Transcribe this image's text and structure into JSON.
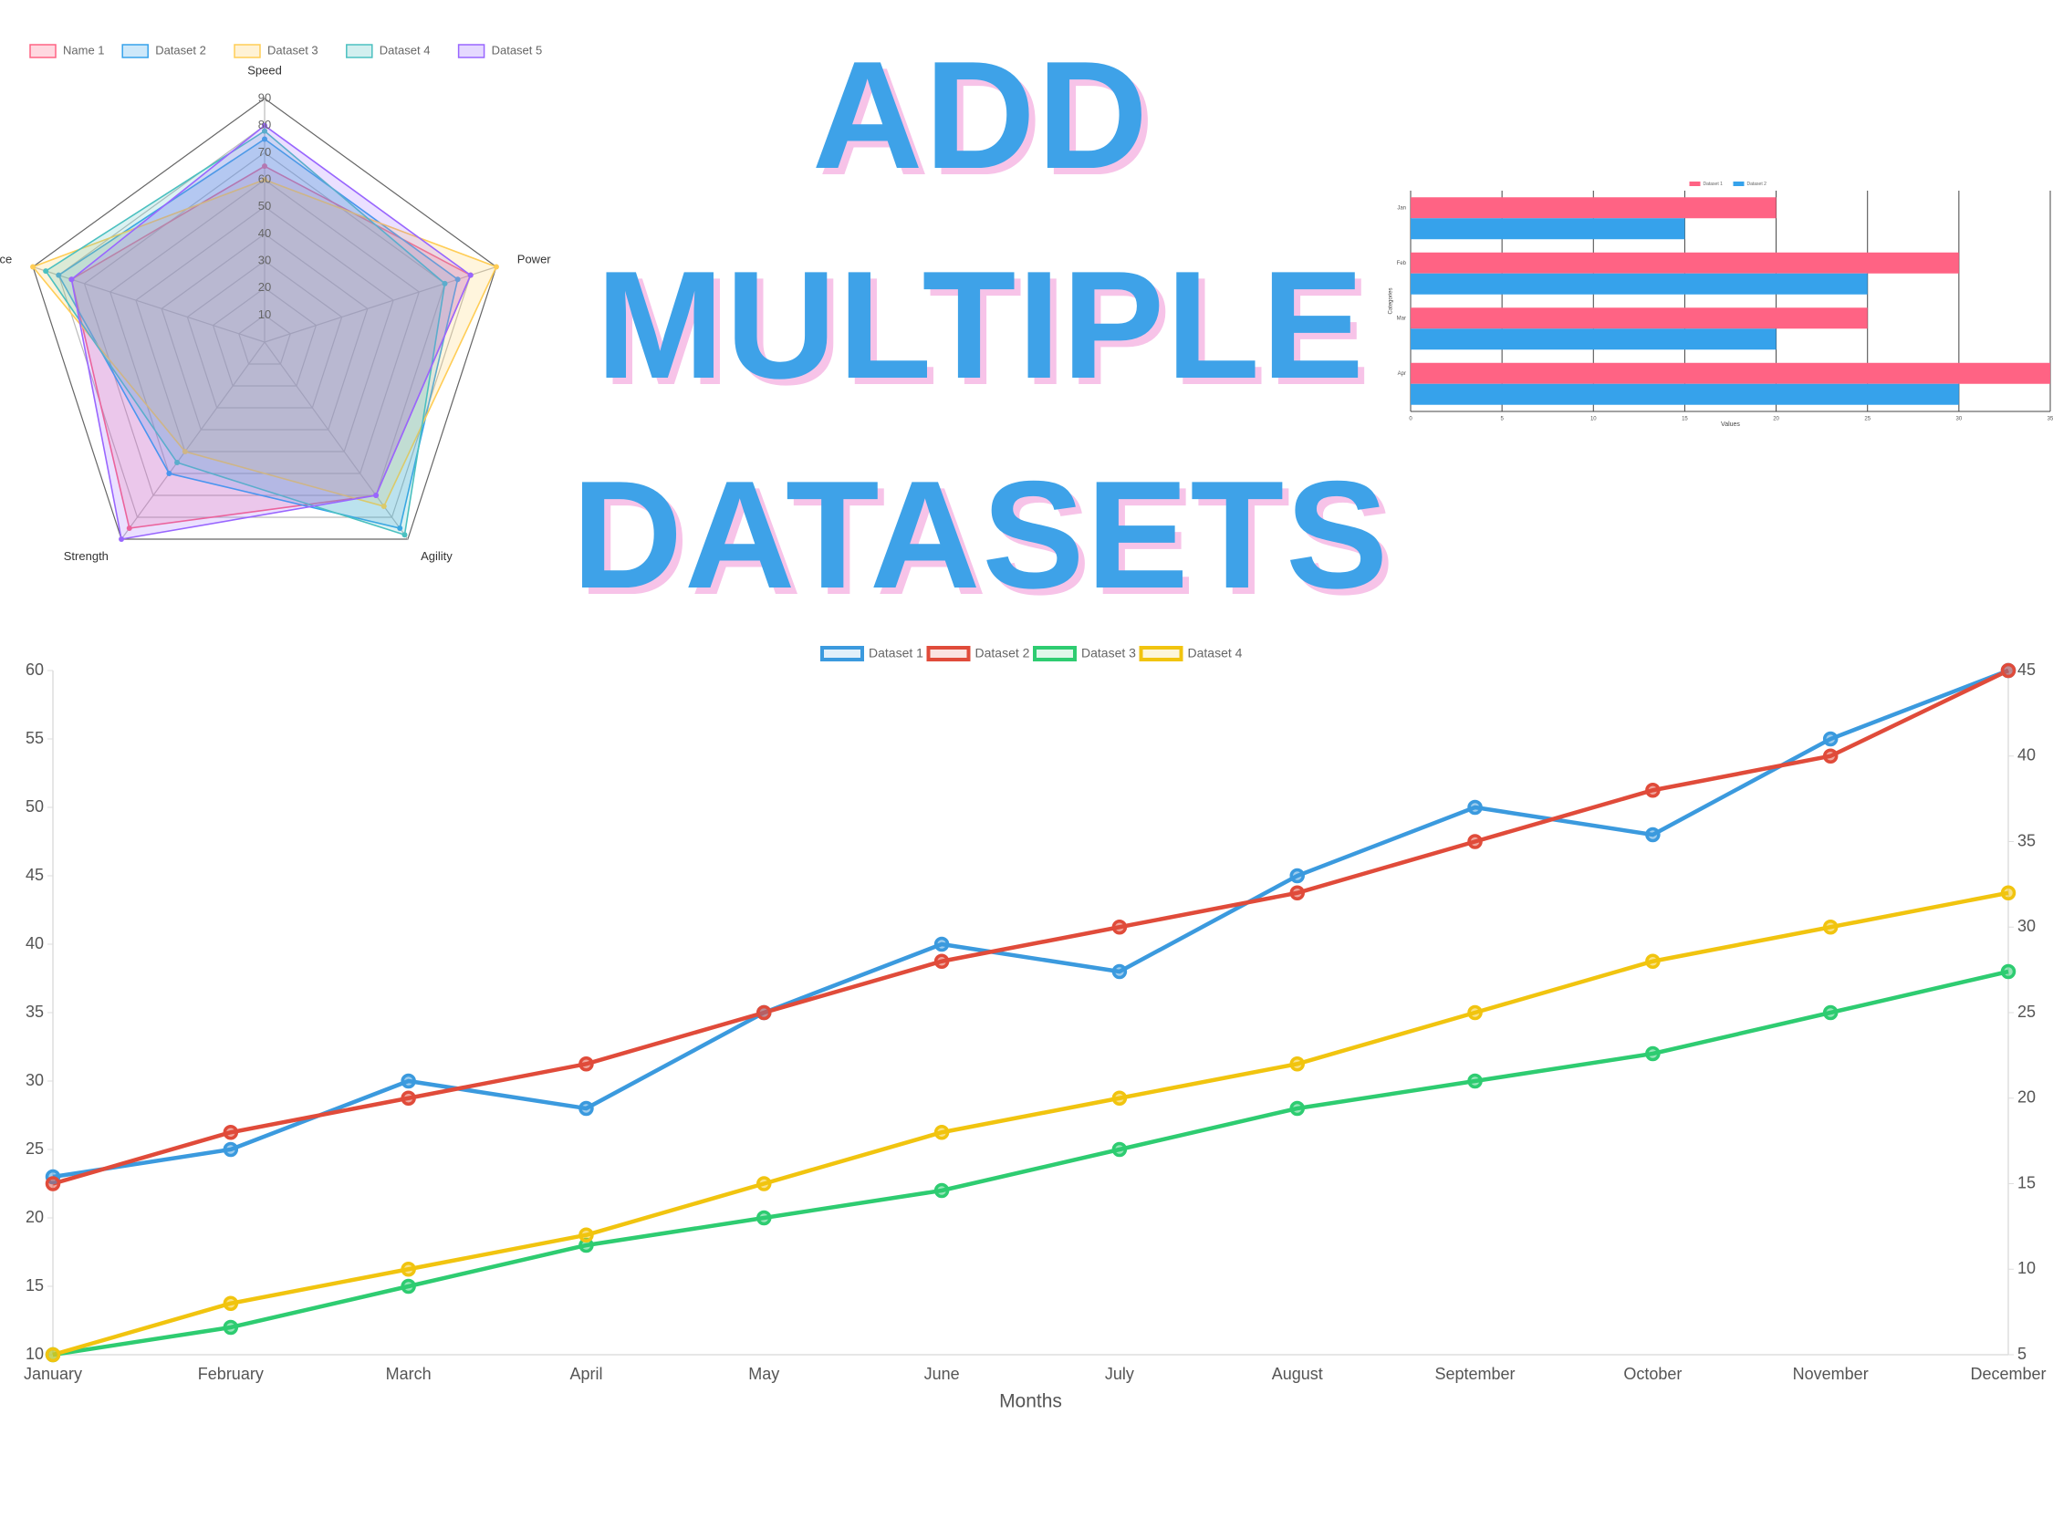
{
  "title_lines": [
    "ADD",
    "MULTIPLE",
    "DATASETS"
  ],
  "chart_data": [
    {
      "type": "radar",
      "categories": [
        "Speed",
        "Power",
        "Agility",
        "Strength",
        "Endurance"
      ],
      "series": [
        {
          "name": "Name 1",
          "color": "#ff6384",
          "values": [
            65,
            80,
            70,
            85,
            75
          ]
        },
        {
          "name": "Dataset 2",
          "color": "#36a2eb",
          "values": [
            75,
            75,
            85,
            60,
            80
          ]
        },
        {
          "name": "Dataset 3",
          "color": "#ffcd56",
          "values": [
            60,
            90,
            75,
            50,
            90
          ]
        },
        {
          "name": "Dataset 4",
          "color": "#4bc0c0",
          "values": [
            78,
            70,
            88,
            55,
            85
          ]
        },
        {
          "name": "Dataset 5",
          "color": "#9966ff",
          "values": [
            80,
            80,
            70,
            90,
            75
          ]
        }
      ],
      "rlim": [
        0,
        90
      ],
      "rticks": [
        10,
        20,
        30,
        40,
        50,
        60,
        70,
        80,
        90
      ],
      "grid": true,
      "legend": "top-left"
    },
    {
      "type": "hbar",
      "categories": [
        "Jan",
        "Feb",
        "Mar",
        "Apr"
      ],
      "series": [
        {
          "name": "Dataset 1",
          "color": "#ff6384",
          "values": [
            20,
            30,
            25,
            35
          ]
        },
        {
          "name": "Dataset 2",
          "color": "#36a2eb",
          "values": [
            15,
            25,
            20,
            30
          ]
        }
      ],
      "xlim": [
        0,
        35
      ],
      "xticks": [
        0,
        5,
        10,
        15,
        20,
        25,
        30,
        35
      ],
      "xlabel": "Values",
      "ylabel": "Categories",
      "grid": true,
      "legend": "top"
    },
    {
      "type": "line",
      "categories": [
        "January",
        "February",
        "March",
        "April",
        "May",
        "June",
        "July",
        "August",
        "September",
        "October",
        "November",
        "December"
      ],
      "series": [
        {
          "name": "Dataset 1",
          "color": "#3b9ade",
          "values": [
            23,
            25,
            30,
            28,
            35,
            40,
            38,
            45,
            50,
            48,
            55,
            60
          ]
        },
        {
          "name": "Dataset 2",
          "color": "#e04b3a",
          "axis": "y2",
          "values": [
            15,
            18,
            20,
            22,
            25,
            28,
            30,
            32,
            35,
            38,
            40,
            45
          ]
        },
        {
          "name": "Dataset 3",
          "color": "#2ecc71",
          "values": [
            10,
            12,
            15,
            18,
            20,
            22,
            25,
            28,
            30,
            32,
            35,
            38
          ]
        },
        {
          "name": "Dataset 4",
          "color": "#f1c40f",
          "axis": "y2",
          "values": [
            5,
            8,
            10,
            12,
            15,
            18,
            20,
            22,
            25,
            28,
            30,
            32
          ]
        }
      ],
      "ylim": [
        10,
        60
      ],
      "yticks": [
        10,
        15,
        20,
        25,
        30,
        35,
        40,
        45,
        50,
        55,
        60
      ],
      "y2lim": [
        5,
        45
      ],
      "y2ticks": [
        5,
        10,
        15,
        20,
        25,
        30,
        35,
        40,
        45
      ],
      "xlabel": "Months",
      "legend": "top"
    }
  ]
}
